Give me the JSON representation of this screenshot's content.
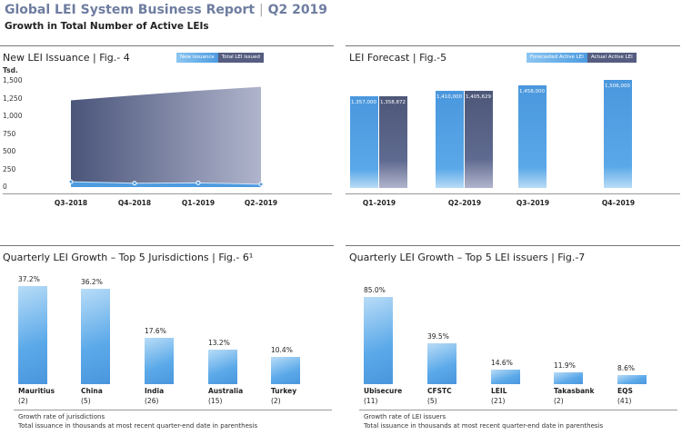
{
  "header": {
    "title": "Global LEI System Business Report",
    "period": "Q2 2019",
    "subtitle": "Growth in Total Number of Active LEIs"
  },
  "colors": {
    "title": "#6e7da0",
    "blue": "#4d9be0",
    "dark": "#555d80"
  },
  "chart_data": [
    {
      "id": "fig4",
      "type": "area",
      "title": "New LEI Issuance  |  Fig.- 4",
      "ylabel": "Tsd.",
      "ylim": [
        0,
        1500
      ],
      "yticks": [
        "1,500",
        "1,250",
        "1,000",
        "750",
        "500",
        "250",
        "0"
      ],
      "ytick_values": [
        1500,
        1250,
        1000,
        750,
        500,
        250,
        0
      ],
      "categories": [
        "Q3–2018",
        "Q4–2018",
        "Q1–2019",
        "Q2–2019"
      ],
      "legend": [
        "New issuance",
        "Total LEI issued"
      ],
      "series": [
        {
          "name": "New issuance",
          "values": [
            75,
            55,
            60,
            40
          ]
        },
        {
          "name": "Total LEI issued",
          "values": [
            1225,
            1295,
            1360,
            1415
          ]
        }
      ]
    },
    {
      "id": "fig5",
      "type": "bar",
      "title": "LEI Forecast  |  Fig.-5",
      "categories": [
        "Q1–2019",
        "Q2–2019",
        "Q3–2019",
        "Q4–2019"
      ],
      "legend": [
        "Forecasted Active LEI",
        "Actual Active LEI"
      ],
      "series": [
        {
          "name": "Forecasted Active LEI",
          "values": [
            1357000,
            1410000,
            1458000,
            1506000
          ],
          "labels": [
            "1,357,000",
            "1,410,000",
            "1,458,000",
            "1,506,000"
          ]
        },
        {
          "name": "Actual Active LEI",
          "values": [
            1358872,
            1405629,
            null,
            null
          ],
          "labels": [
            "1,358,872",
            "1,405,629",
            null,
            null
          ]
        }
      ]
    },
    {
      "id": "fig6",
      "type": "bar",
      "title": "Quarterly LEI Growth – Top 5 Jurisdictions  |  Fig.- 6¹",
      "categories": [
        "Mauritius",
        "China",
        "India",
        "Australia",
        "Turkey"
      ],
      "counts": [
        "(2)",
        "(5)",
        "(26)",
        "(15)",
        "(2)"
      ],
      "values": [
        37.2,
        36.2,
        17.6,
        13.2,
        10.4
      ],
      "labels": [
        "37.2%",
        "36.2%",
        "17.6%",
        "13.2%",
        "10.4%"
      ],
      "notes": [
        "Growth rate of jurisdictions",
        "Total issuance in thousands at most recent quarter-end date in parenthesis"
      ]
    },
    {
      "id": "fig7",
      "type": "bar",
      "title": "Quarterly LEI Growth – Top 5 LEI issuers  |  Fig.-7",
      "categories": [
        "Ubisecure",
        "CFSTC",
        "LEIL",
        "Takasbank",
        "EQS"
      ],
      "counts": [
        "(11)",
        "(5)",
        "(21)",
        "(2)",
        "(41)"
      ],
      "values": [
        85.0,
        39.5,
        14.6,
        11.9,
        8.6
      ],
      "labels": [
        "85.0%",
        "39.5%",
        "14.6%",
        "11.9%",
        "8.6%"
      ],
      "notes": [
        "Growth rate of LEI issuers",
        "Total issuance in thousands at most recent quarter-end date in parenthesis"
      ]
    }
  ]
}
